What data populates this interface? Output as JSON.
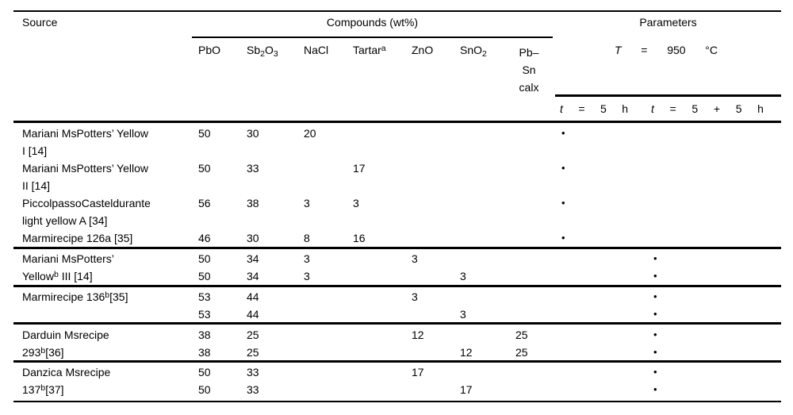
{
  "colors": {
    "text_color": "#000000",
    "background_color": "#ffffff",
    "rule_color": "#000000"
  },
  "table": {
    "header": {
      "source_label": "Source",
      "compounds_label": "Compounds (wt%)",
      "parameters_label": "Parameters",
      "col_pbo": "PbO",
      "col_sb2o3": {
        "p1": "Sb",
        "s1": "2",
        "p2": "O",
        "s2": "3"
      },
      "col_nacl": "NaCl",
      "col_tartar": {
        "text": "Tartar",
        "sup": "a"
      },
      "col_zno": "ZnO",
      "col_sno2": {
        "text": "SnO",
        "sub": "2"
      },
      "col_pbsn": {
        "l1": "Pb–",
        "l2": "Sn",
        "l3": "calx"
      },
      "temp": {
        "t": "T",
        "eq": "=",
        "val": "950",
        "unit": "°C"
      },
      "time1": {
        "t": "t",
        "eq": "=",
        "v1": "5",
        "u": "h"
      },
      "time2": {
        "t": "t",
        "eq": "=",
        "v1": "5",
        "plus": "+",
        "v2": "5",
        "u": "h"
      }
    },
    "rows": [
      {
        "src_pre": "Mariani MsPotters’ Yellow",
        "pbo": "50",
        "sb2o3": "30",
        "nacl": "20",
        "t1": "•"
      },
      {
        "src_pre": "I [14]"
      },
      {
        "src_pre": "Mariani MsPotters’ Yellow",
        "pbo": "50",
        "sb2o3": "33",
        "tartar": "17",
        "t1": "•"
      },
      {
        "src_pre": "II [14]"
      },
      {
        "src_pre": "PiccolpassoCasteldurante",
        "pbo": "56",
        "sb2o3": "38",
        "nacl": "3",
        "tartar": "3",
        "t1": "•"
      },
      {
        "src_pre": "light yellow A [34]"
      },
      {
        "src_pre": "Marmirecipe 126a [35]",
        "pbo": "46",
        "sb2o3": "30",
        "nacl": "8",
        "tartar": "16",
        "t1": "•"
      },
      {
        "src_pre": "Mariani MsPotters’",
        "pbo": "50",
        "sb2o3": "34",
        "nacl": "3",
        "zno": "3",
        "t2": "•"
      },
      {
        "src_pre": "Yellow",
        "src_sup": "b",
        "src_post": " III [14]",
        "pbo": "50",
        "sb2o3": "34",
        "nacl": "3",
        "sno2": "3",
        "t2": "•"
      },
      {
        "src_pre": "Marmirecipe 136",
        "src_sup": "b",
        "src_post": "[35]",
        "pbo": "53",
        "sb2o3": "44",
        "zno": "3",
        "t2": "•"
      },
      {
        "pbo": "53",
        "sb2o3": "44",
        "sno2": "3",
        "t2": "•"
      },
      {
        "src_pre": "Darduin Msrecipe",
        "pbo": "38",
        "sb2o3": "25",
        "zno": "12",
        "pbsn": "25",
        "t2": "•"
      },
      {
        "src_pre": "293",
        "src_sup": "b",
        "src_post": "[36]",
        "pbo": "38",
        "sb2o3": "25",
        "sno2": "12",
        "pbsn": "25",
        "t2": "•"
      },
      {
        "src_pre": "Danzica Msrecipe",
        "pbo": "50",
        "sb2o3": "33",
        "zno": "17",
        "t2": "•"
      },
      {
        "src_pre": "137",
        "src_sup": "b",
        "src_post": "[37]",
        "pbo": "50",
        "sb2o3": "33",
        "sno2": "17",
        "t2": "•"
      }
    ]
  }
}
